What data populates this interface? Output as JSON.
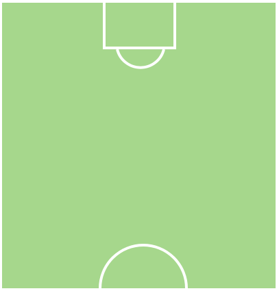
{
  "pitch": {
    "surface_color": "#a6d78c",
    "line_color": "#ffffff",
    "background_color": "#ffffff",
    "visible_markings": [
      "penalty-area",
      "penalty-arc",
      "center-circle-top-half"
    ]
  }
}
